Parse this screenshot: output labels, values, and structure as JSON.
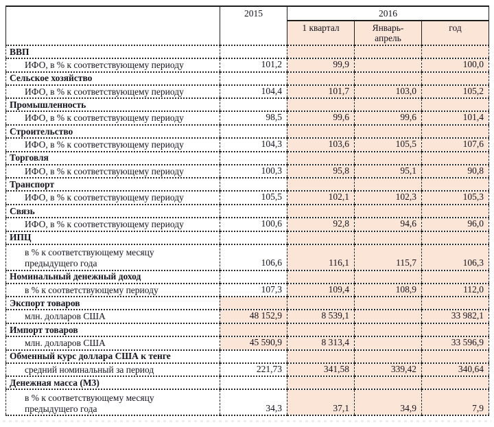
{
  "colors": {
    "highlight_fill": "#fbe5d6",
    "text": "#13131d",
    "border": "#1d1d1d"
  },
  "table": {
    "header": {
      "year_2015": "2015",
      "year_2016": "2016",
      "sub_columns": [
        "1 квартал",
        "Январь-\nапрель",
        "год"
      ]
    },
    "rows": [
      {
        "type": "section",
        "label": "ВВП",
        "values": [
          "",
          "",
          "",
          ""
        ],
        "shaded_2015": false,
        "two_line": false
      },
      {
        "type": "data",
        "label": "ИФО, в % к соответствующему периоду",
        "values": [
          "101,2",
          "99,9",
          "",
          "100,0"
        ],
        "shaded_2015": false,
        "two_line": false
      },
      {
        "type": "section",
        "label": "Сельское хозяйство",
        "values": [
          "",
          "",
          "",
          ""
        ],
        "shaded_2015": false,
        "two_line": false
      },
      {
        "type": "data",
        "label": "ИФО, в % к соответствующему периоду",
        "values": [
          "104,4",
          "101,7",
          "103,0",
          "105,2"
        ],
        "shaded_2015": false,
        "two_line": false
      },
      {
        "type": "section",
        "label": "Промышленность",
        "values": [
          "",
          "",
          "",
          ""
        ],
        "shaded_2015": false,
        "two_line": false
      },
      {
        "type": "data",
        "label": "ИФО, в % к соответствующему периоду",
        "values": [
          "98,5",
          "99,6",
          "99,6",
          "101,4"
        ],
        "shaded_2015": false,
        "two_line": false
      },
      {
        "type": "section",
        "label": "Строительство",
        "values": [
          "",
          "",
          "",
          ""
        ],
        "shaded_2015": false,
        "two_line": false
      },
      {
        "type": "data",
        "label": "ИФО, в % к соответствующему периоду",
        "values": [
          "104,3",
          "103,6",
          "105,5",
          "107,6"
        ],
        "shaded_2015": false,
        "two_line": false
      },
      {
        "type": "section",
        "label": "Торговля",
        "values": [
          "",
          "",
          "",
          ""
        ],
        "shaded_2015": false,
        "two_line": false
      },
      {
        "type": "data",
        "label": "ИФО, в % к соответствующему периоду",
        "values": [
          "100,3",
          "95,8",
          "95,1",
          "90,8"
        ],
        "shaded_2015": false,
        "two_line": false
      },
      {
        "type": "section",
        "label": "Транспорт",
        "values": [
          "",
          "",
          "",
          ""
        ],
        "shaded_2015": false,
        "two_line": false
      },
      {
        "type": "data",
        "label": "ИФО, в % к соответствующему периоду",
        "values": [
          "105,5",
          "102,1",
          "102,3",
          "105,3"
        ],
        "shaded_2015": false,
        "two_line": false
      },
      {
        "type": "section",
        "label": "Связь",
        "values": [
          "",
          "",
          "",
          ""
        ],
        "shaded_2015": false,
        "two_line": false
      },
      {
        "type": "data",
        "label": "ИФО, в % к соответствующему периоду",
        "values": [
          "100,6",
          "92,8",
          "94,6",
          "96,0"
        ],
        "shaded_2015": false,
        "two_line": false
      },
      {
        "type": "section",
        "label": "ИПЦ",
        "values": [
          "",
          "",
          "",
          ""
        ],
        "shaded_2015": false,
        "two_line": false
      },
      {
        "type": "data",
        "label": "в % к соответствующему месяцу\nпредыдущего года",
        "values": [
          "106,6",
          "116,1",
          "115,7",
          "106,3"
        ],
        "shaded_2015": false,
        "two_line": true
      },
      {
        "type": "section",
        "label": "Номинальный денежный доход",
        "values": [
          "",
          "",
          "",
          ""
        ],
        "shaded_2015": false,
        "two_line": false
      },
      {
        "type": "data",
        "label": "в % к соответствующему периоду",
        "values": [
          "107,3",
          "109,4",
          "108,9",
          "112,0"
        ],
        "shaded_2015": false,
        "two_line": false
      },
      {
        "type": "section",
        "label": "Экспорт товаров",
        "values": [
          "",
          "",
          "",
          ""
        ],
        "shaded_2015": true,
        "two_line": false
      },
      {
        "type": "data",
        "label": "млн. долларов США",
        "values": [
          "48 152,9",
          "8 539,1",
          "",
          "33 982,1"
        ],
        "shaded_2015": true,
        "two_line": false
      },
      {
        "type": "section",
        "label": "Импорт товаров",
        "values": [
          "",
          "",
          "",
          ""
        ],
        "shaded_2015": true,
        "two_line": false
      },
      {
        "type": "data",
        "label": "млн. долларов США",
        "values": [
          "45 590,9",
          "8 313,4",
          "",
          "33 596,9"
        ],
        "shaded_2015": true,
        "two_line": false
      },
      {
        "type": "section",
        "label": "Обменный курс доллара США к тенге",
        "values": [
          "",
          "",
          "",
          ""
        ],
        "shaded_2015": false,
        "two_line": false
      },
      {
        "type": "data",
        "label": "средний номинальный за период",
        "values": [
          "221,73",
          "341,58",
          "339,42",
          "340,64"
        ],
        "shaded_2015": false,
        "two_line": false
      },
      {
        "type": "section",
        "label": "Денежная масса (М3)",
        "values": [
          "",
          "",
          "",
          ""
        ],
        "shaded_2015": false,
        "two_line": false
      },
      {
        "type": "data",
        "label": "в % к соответствующему месяцу\nпредыдущего года",
        "values": [
          "34,3",
          "37,1",
          "34,9",
          "7,9"
        ],
        "shaded_2015": false,
        "two_line": true
      }
    ]
  }
}
